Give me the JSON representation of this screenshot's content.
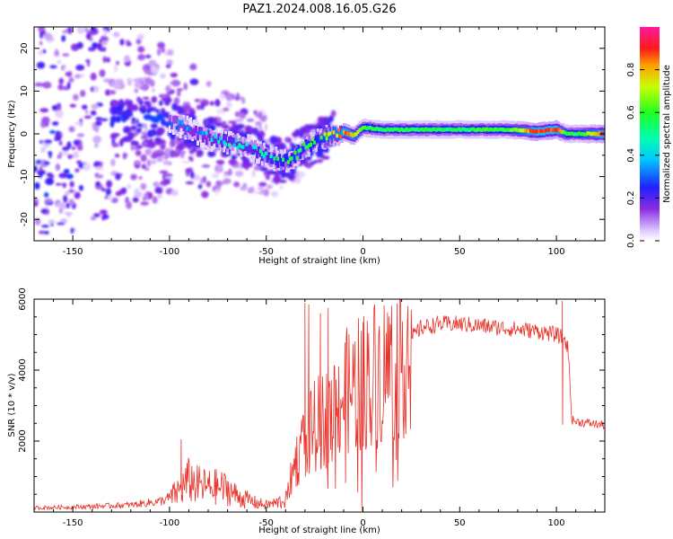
{
  "figure": {
    "title": "PAZ1.2024.008.16.05.G26"
  },
  "chart_data": [
    {
      "type": "heatmap",
      "xlabel": "Height of straight line (km)",
      "ylabel": "Frequency (Hz)",
      "xlim": [
        -170,
        125
      ],
      "ylim": [
        -25,
        25
      ],
      "xticks": [
        -150,
        -100,
        -50,
        0,
        50,
        100
      ],
      "yticks": [
        -20,
        -10,
        0,
        10,
        20
      ],
      "colormap": "rainbow (white-violet-blue-cyan-green-yellow-red-magenta)",
      "ridge": {
        "x": [
          -100,
          -90,
          -80,
          -70,
          -60,
          -50,
          -45,
          -40,
          -35,
          -30,
          -25,
          -20,
          -15,
          -10,
          -5,
          0,
          10,
          25,
          50,
          75,
          90,
          100,
          105,
          110,
          125
        ],
        "frequency": [
          3,
          1,
          -1,
          -2,
          -3,
          -5,
          -6,
          -6.5,
          -5,
          -3,
          -2,
          -1,
          0,
          0.5,
          -0.5,
          1.5,
          1,
          1,
          1,
          1,
          0.5,
          1,
          0,
          0,
          0
        ],
        "amplitude": [
          0.3,
          0.35,
          0.4,
          0.45,
          0.45,
          0.5,
          0.55,
          0.6,
          0.55,
          0.55,
          0.6,
          0.65,
          0.75,
          0.85,
          0.8,
          0.6,
          0.55,
          0.55,
          0.55,
          0.6,
          0.9,
          0.9,
          0.6,
          0.55,
          0.9
        ]
      },
      "noise_extent_x": [
        -170,
        -20
      ],
      "colorbar": {
        "label": "Normalized spectral amplitude",
        "range": [
          0.0,
          1.0
        ],
        "ticks": [
          "0.0",
          "0.2",
          "0.4",
          "0.6",
          "0.8"
        ]
      }
    },
    {
      "type": "line",
      "xlabel": "Height of straight line (km)",
      "ylabel": "SNR (10 * v/v)",
      "xlim": [
        -170,
        125
      ],
      "ylim": [
        0,
        6000
      ],
      "xticks": [
        -150,
        -100,
        -50,
        0,
        50,
        100
      ],
      "yticks": [
        2000,
        4000,
        6000
      ],
      "color": "#e8322a",
      "series": [
        {
          "x": [
            -170,
            -150,
            -120,
            -105,
            -100,
            -95,
            -90,
            -85,
            -80,
            -75,
            -70,
            -65,
            -60,
            -55,
            -50,
            -45,
            -40,
            -35,
            -30,
            -25,
            -20,
            -15,
            -10,
            -5,
            0,
            5,
            10,
            15,
            20,
            25,
            30,
            40,
            50,
            60,
            70,
            80,
            90,
            100,
            104,
            106,
            108,
            110,
            125
          ],
          "value": [
            120,
            140,
            200,
            300,
            400,
            600,
            900,
            750,
            700,
            700,
            650,
            450,
            350,
            250,
            200,
            250,
            350,
            1400,
            2000,
            2400,
            2600,
            3000,
            3300,
            3500,
            3700,
            3900,
            4000,
            4200,
            4400,
            4900,
            5200,
            5300,
            5300,
            5250,
            5200,
            5150,
            5100,
            5000,
            4900,
            4600,
            2600,
            2550,
            2450
          ],
          "spikes": [
            {
              "x": -94,
              "value": 2050
            },
            {
              "x": -30,
              "value": 5900
            },
            {
              "x": -28,
              "value": 5850
            },
            {
              "x": -22,
              "value": 5600
            },
            {
              "x": -18,
              "value": 5750
            },
            {
              "x": 0,
              "value": 5350
            },
            {
              "x": 103,
              "value": 5950
            }
          ]
        }
      ]
    }
  ]
}
